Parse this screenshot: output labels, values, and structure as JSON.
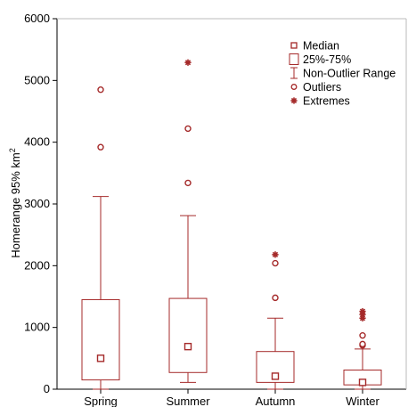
{
  "chart_data": {
    "type": "box",
    "ylabel_main": "Homerange 95% km",
    "ylabel_sup": "2",
    "ylim": [
      0,
      6000
    ],
    "yticks": [
      0,
      1000,
      2000,
      3000,
      4000,
      5000,
      6000
    ],
    "categories": [
      "Spring",
      "Summer",
      "Autumn",
      "Winter"
    ],
    "boxes": [
      {
        "category": "Spring",
        "median": 500,
        "q1": 150,
        "q3": 1450,
        "whisker_low": 0,
        "whisker_high": 3120,
        "outliers": [
          3920,
          4850
        ],
        "extremes": []
      },
      {
        "category": "Summer",
        "median": 690,
        "q1": 270,
        "q3": 1470,
        "whisker_low": 110,
        "whisker_high": 2810,
        "outliers": [
          3340,
          4220
        ],
        "extremes": [
          5290
        ]
      },
      {
        "category": "Autumn",
        "median": 210,
        "q1": 110,
        "q3": 610,
        "whisker_low": 0,
        "whisker_high": 1150,
        "outliers": [
          1480,
          2040
        ],
        "extremes": [
          2180
        ]
      },
      {
        "category": "Winter",
        "median": 110,
        "q1": 70,
        "q3": 310,
        "whisker_low": 0,
        "whisker_high": 650,
        "outliers": [
          710,
          730,
          870
        ],
        "extremes": [
          1150,
          1210,
          1260
        ]
      }
    ],
    "legend": {
      "position": "top-right",
      "items": [
        {
          "symbol": "square",
          "label": "Median"
        },
        {
          "symbol": "box",
          "label": "25%-75%"
        },
        {
          "symbol": "whisker",
          "label": "Non-Outlier Range"
        },
        {
          "symbol": "circle",
          "label": "Outliers"
        },
        {
          "symbol": "asterisk",
          "label": "Extremes"
        }
      ]
    },
    "colors": {
      "series": "#a52a2a",
      "axis": "#000000",
      "background": "#ffffff"
    }
  }
}
